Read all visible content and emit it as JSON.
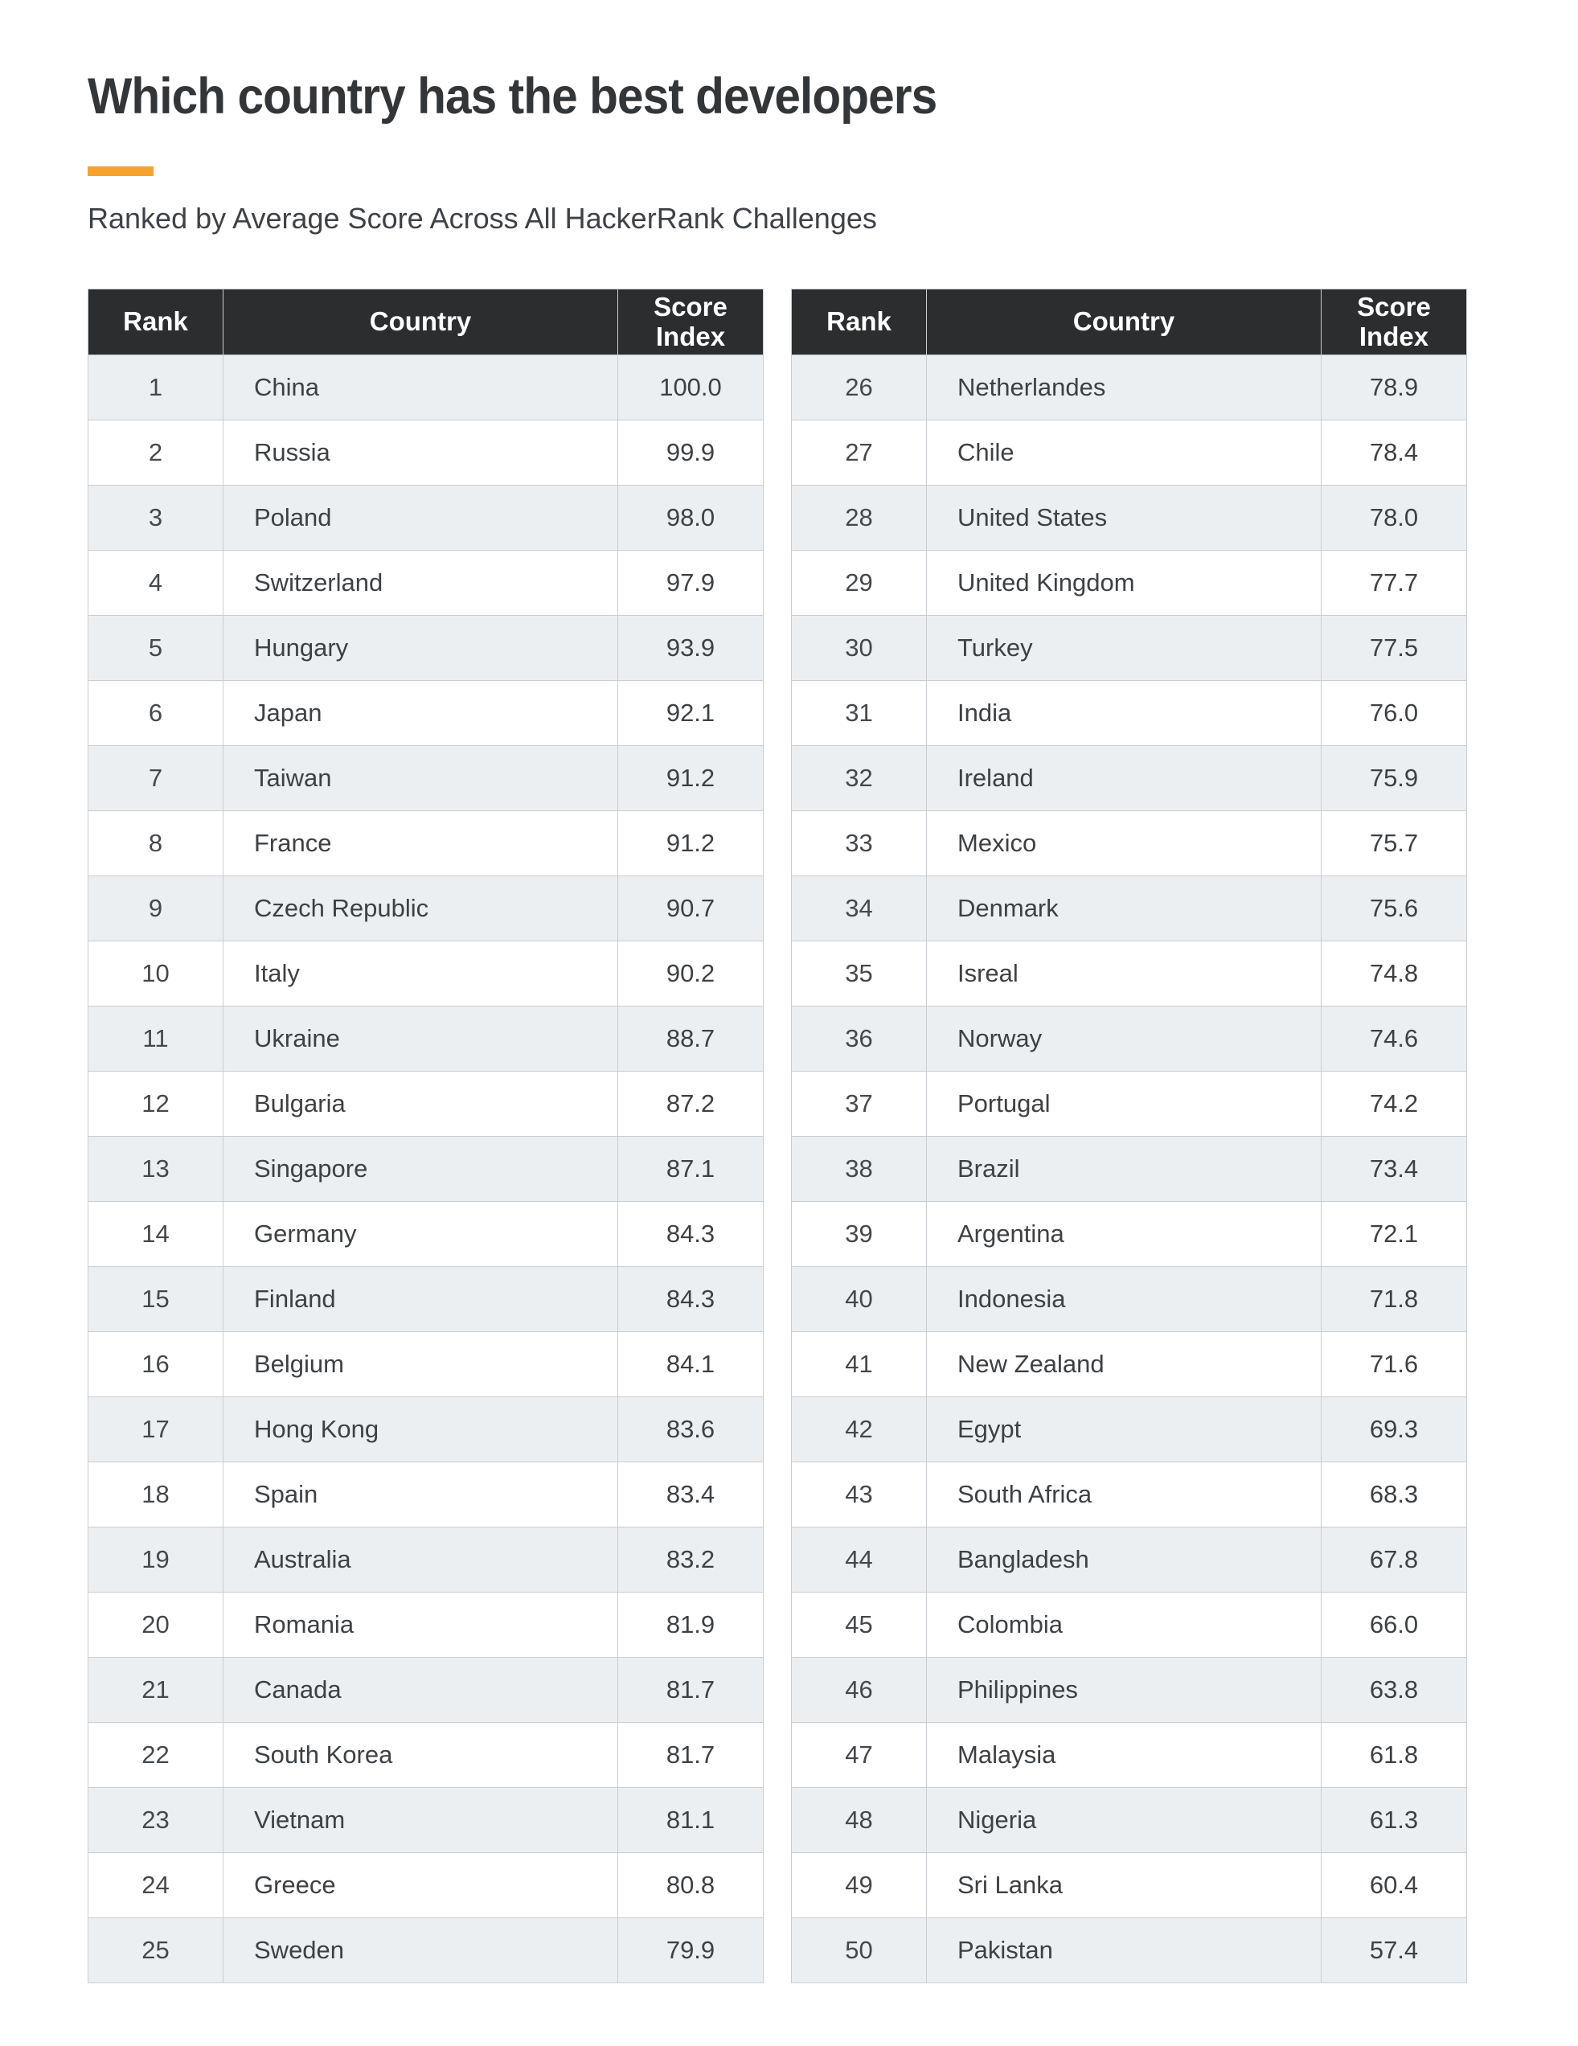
{
  "title": "Which country has the best developers",
  "subtitle": "Ranked by Average Score Across All HackerRank Challenges",
  "accent_color": "#f5a32e",
  "header_bg_color": "#2b2d2f",
  "alt_row_color": "#eceff1",
  "border_color": "#c9ced3",
  "table_headers": {
    "rank": "Rank",
    "country": "Country",
    "score": "Score Index"
  },
  "tables": {
    "left": {
      "rows": [
        {
          "rank": "1",
          "country": "China",
          "score": "100.0"
        },
        {
          "rank": "2",
          "country": "Russia",
          "score": "99.9"
        },
        {
          "rank": "3",
          "country": "Poland",
          "score": "98.0"
        },
        {
          "rank": "4",
          "country": "Switzerland",
          "score": "97.9"
        },
        {
          "rank": "5",
          "country": "Hungary",
          "score": "93.9"
        },
        {
          "rank": "6",
          "country": "Japan",
          "score": "92.1"
        },
        {
          "rank": "7",
          "country": "Taiwan",
          "score": "91.2"
        },
        {
          "rank": "8",
          "country": "France",
          "score": "91.2"
        },
        {
          "rank": "9",
          "country": "Czech Republic",
          "score": "90.7"
        },
        {
          "rank": "10",
          "country": "Italy",
          "score": "90.2"
        },
        {
          "rank": "11",
          "country": "Ukraine",
          "score": "88.7"
        },
        {
          "rank": "12",
          "country": "Bulgaria",
          "score": "87.2"
        },
        {
          "rank": "13",
          "country": "Singapore",
          "score": "87.1"
        },
        {
          "rank": "14",
          "country": "Germany",
          "score": "84.3"
        },
        {
          "rank": "15",
          "country": "Finland",
          "score": "84.3"
        },
        {
          "rank": "16",
          "country": "Belgium",
          "score": "84.1"
        },
        {
          "rank": "17",
          "country": "Hong Kong",
          "score": "83.6"
        },
        {
          "rank": "18",
          "country": "Spain",
          "score": "83.4"
        },
        {
          "rank": "19",
          "country": "Australia",
          "score": "83.2"
        },
        {
          "rank": "20",
          "country": "Romania",
          "score": "81.9"
        },
        {
          "rank": "21",
          "country": "Canada",
          "score": "81.7"
        },
        {
          "rank": "22",
          "country": "South Korea",
          "score": "81.7"
        },
        {
          "rank": "23",
          "country": "Vietnam",
          "score": "81.1"
        },
        {
          "rank": "24",
          "country": "Greece",
          "score": "80.8"
        },
        {
          "rank": "25",
          "country": "Sweden",
          "score": "79.9"
        }
      ]
    },
    "right": {
      "rows": [
        {
          "rank": "26",
          "country": "Netherlandes",
          "score": "78.9"
        },
        {
          "rank": "27",
          "country": "Chile",
          "score": "78.4"
        },
        {
          "rank": "28",
          "country": "United States",
          "score": "78.0"
        },
        {
          "rank": "29",
          "country": "United Kingdom",
          "score": "77.7"
        },
        {
          "rank": "30",
          "country": "Turkey",
          "score": "77.5"
        },
        {
          "rank": "31",
          "country": "India",
          "score": "76.0"
        },
        {
          "rank": "32",
          "country": "Ireland",
          "score": "75.9"
        },
        {
          "rank": "33",
          "country": "Mexico",
          "score": "75.7"
        },
        {
          "rank": "34",
          "country": "Denmark",
          "score": "75.6"
        },
        {
          "rank": "35",
          "country": "Isreal",
          "score": "74.8"
        },
        {
          "rank": "36",
          "country": "Norway",
          "score": "74.6"
        },
        {
          "rank": "37",
          "country": "Portugal",
          "score": "74.2"
        },
        {
          "rank": "38",
          "country": "Brazil",
          "score": "73.4"
        },
        {
          "rank": "39",
          "country": "Argentina",
          "score": "72.1"
        },
        {
          "rank": "40",
          "country": "Indonesia",
          "score": "71.8"
        },
        {
          "rank": "41",
          "country": "New Zealand",
          "score": "71.6"
        },
        {
          "rank": "42",
          "country": "Egypt",
          "score": "69.3"
        },
        {
          "rank": "43",
          "country": "South Africa",
          "score": "68.3"
        },
        {
          "rank": "44",
          "country": "Bangladesh",
          "score": "67.8"
        },
        {
          "rank": "45",
          "country": "Colombia",
          "score": "66.0"
        },
        {
          "rank": "46",
          "country": "Philippines",
          "score": "63.8"
        },
        {
          "rank": "47",
          "country": "Malaysia",
          "score": "61.8"
        },
        {
          "rank": "48",
          "country": "Nigeria",
          "score": "61.3"
        },
        {
          "rank": "49",
          "country": "Sri Lanka",
          "score": "60.4"
        },
        {
          "rank": "50",
          "country": "Pakistan",
          "score": "57.4"
        }
      ]
    }
  },
  "chart_data": {
    "type": "table",
    "title": "Which country has the best developers",
    "subtitle": "Ranked by Average Score Across All HackerRank Challenges",
    "columns": [
      "Rank",
      "Country",
      "Score Index"
    ],
    "rows": [
      [
        1,
        "China",
        100.0
      ],
      [
        2,
        "Russia",
        99.9
      ],
      [
        3,
        "Poland",
        98.0
      ],
      [
        4,
        "Switzerland",
        97.9
      ],
      [
        5,
        "Hungary",
        93.9
      ],
      [
        6,
        "Japan",
        92.1
      ],
      [
        7,
        "Taiwan",
        91.2
      ],
      [
        8,
        "France",
        91.2
      ],
      [
        9,
        "Czech Republic",
        90.7
      ],
      [
        10,
        "Italy",
        90.2
      ],
      [
        11,
        "Ukraine",
        88.7
      ],
      [
        12,
        "Bulgaria",
        87.2
      ],
      [
        13,
        "Singapore",
        87.1
      ],
      [
        14,
        "Germany",
        84.3
      ],
      [
        15,
        "Finland",
        84.3
      ],
      [
        16,
        "Belgium",
        84.1
      ],
      [
        17,
        "Hong Kong",
        83.6
      ],
      [
        18,
        "Spain",
        83.4
      ],
      [
        19,
        "Australia",
        83.2
      ],
      [
        20,
        "Romania",
        81.9
      ],
      [
        21,
        "Canada",
        81.7
      ],
      [
        22,
        "South Korea",
        81.7
      ],
      [
        23,
        "Vietnam",
        81.1
      ],
      [
        24,
        "Greece",
        80.8
      ],
      [
        25,
        "Sweden",
        79.9
      ],
      [
        26,
        "Netherlandes",
        78.9
      ],
      [
        27,
        "Chile",
        78.4
      ],
      [
        28,
        "United States",
        78.0
      ],
      [
        29,
        "United Kingdom",
        77.7
      ],
      [
        30,
        "Turkey",
        77.5
      ],
      [
        31,
        "India",
        76.0
      ],
      [
        32,
        "Ireland",
        75.9
      ],
      [
        33,
        "Mexico",
        75.7
      ],
      [
        34,
        "Denmark",
        75.6
      ],
      [
        35,
        "Isreal",
        74.8
      ],
      [
        36,
        "Norway",
        74.6
      ],
      [
        37,
        "Portugal",
        74.2
      ],
      [
        38,
        "Brazil",
        73.4
      ],
      [
        39,
        "Argentina",
        72.1
      ],
      [
        40,
        "Indonesia",
        71.8
      ],
      [
        41,
        "New Zealand",
        71.6
      ],
      [
        42,
        "Egypt",
        69.3
      ],
      [
        43,
        "South Africa",
        68.3
      ],
      [
        44,
        "Bangladesh",
        67.8
      ],
      [
        45,
        "Colombia",
        66.0
      ],
      [
        46,
        "Philippines",
        63.8
      ],
      [
        47,
        "Malaysia",
        61.8
      ],
      [
        48,
        "Nigeria",
        61.3
      ],
      [
        49,
        "Sri Lanka",
        60.4
      ],
      [
        50,
        "Pakistan",
        57.4
      ]
    ]
  }
}
